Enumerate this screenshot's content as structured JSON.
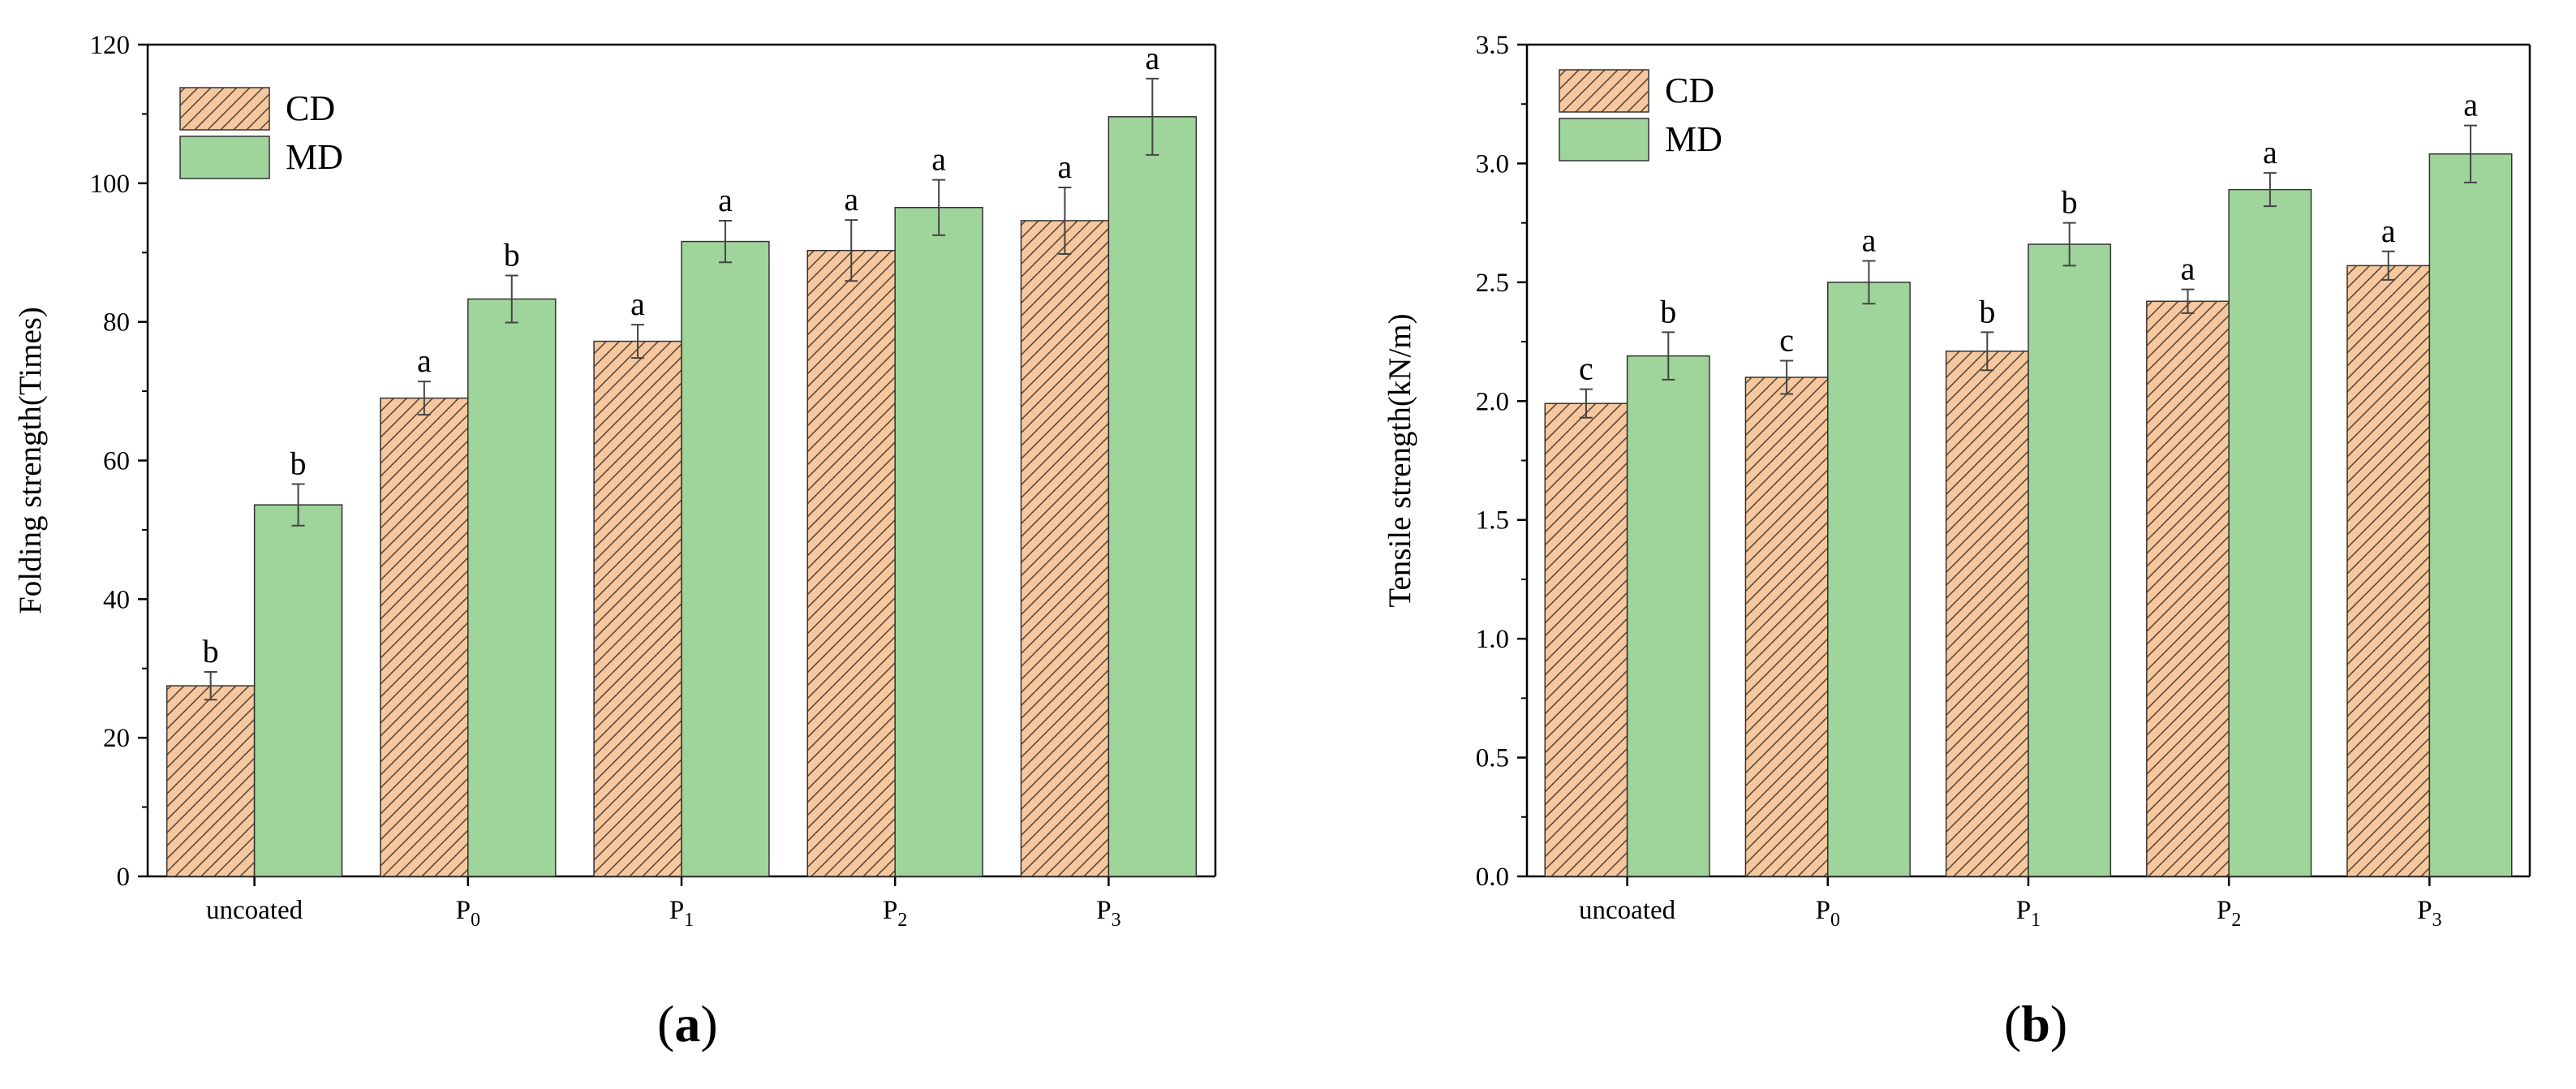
{
  "colors": {
    "cd_fill": "#F7C89E",
    "cd_hatch": "#5a4a3c",
    "md_fill": "#9FD49A",
    "axis": "#000000"
  },
  "panels": [
    {
      "label": "a",
      "chart_data": {
        "type": "bar",
        "title": "",
        "xlabel": "",
        "ylabel": "Folding strength(Times)",
        "categories": [
          {
            "base": "uncoated",
            "sub": ""
          },
          {
            "base": "P",
            "sub": "0"
          },
          {
            "base": "P",
            "sub": "1"
          },
          {
            "base": "P",
            "sub": "2"
          },
          {
            "base": "P",
            "sub": "3"
          }
        ],
        "ylim": [
          0,
          120
        ],
        "yticks": [
          0,
          20,
          40,
          60,
          80,
          100,
          120
        ],
        "ytick_labels": [
          "0",
          "20",
          "40",
          "60",
          "80",
          "100",
          "120"
        ],
        "legend_position": "top-left",
        "series": [
          {
            "name": "CD",
            "values": [
              27.5,
              69,
              77.2,
              90.3,
              94.6
            ],
            "errors": [
              2,
              2.4,
              2.4,
              4.4,
              4.8
            ],
            "letters": [
              "b",
              "a",
              "a",
              "a",
              "a"
            ]
          },
          {
            "name": "MD",
            "values": [
              53.6,
              83.3,
              91.6,
              96.5,
              109.6
            ],
            "errors": [
              3,
              3.4,
              3,
              4,
              5.5
            ],
            "letters": [
              "b",
              "b",
              "a",
              "a",
              "a"
            ]
          }
        ]
      }
    },
    {
      "label": "b",
      "chart_data": {
        "type": "bar",
        "title": "",
        "xlabel": "",
        "ylabel": "Tensile strength(kN/m)",
        "categories": [
          {
            "base": "uncoated",
            "sub": ""
          },
          {
            "base": "P",
            "sub": "0"
          },
          {
            "base": "P",
            "sub": "1"
          },
          {
            "base": "P",
            "sub": "2"
          },
          {
            "base": "P",
            "sub": "3"
          }
        ],
        "ylim": [
          0,
          3.5
        ],
        "yticks": [
          0,
          0.5,
          1.0,
          1.5,
          2.0,
          2.5,
          3.0,
          3.5
        ],
        "ytick_labels": [
          "0.0",
          "0.5",
          "1.0",
          "1.5",
          "2.0",
          "2.5",
          "3.0",
          "3.5"
        ],
        "legend_position": "top-left",
        "series": [
          {
            "name": "CD",
            "values": [
              1.99,
              2.1,
              2.21,
              2.42,
              2.57
            ],
            "errors": [
              0.06,
              0.07,
              0.08,
              0.05,
              0.06
            ],
            "letters": [
              "c",
              "c",
              "b",
              "a",
              "a"
            ]
          },
          {
            "name": "MD",
            "values": [
              2.19,
              2.5,
              2.66,
              2.89,
              3.04
            ],
            "errors": [
              0.1,
              0.09,
              0.09,
              0.07,
              0.12
            ],
            "letters": [
              "b",
              "a",
              "b",
              "a",
              "a"
            ]
          }
        ]
      }
    }
  ]
}
